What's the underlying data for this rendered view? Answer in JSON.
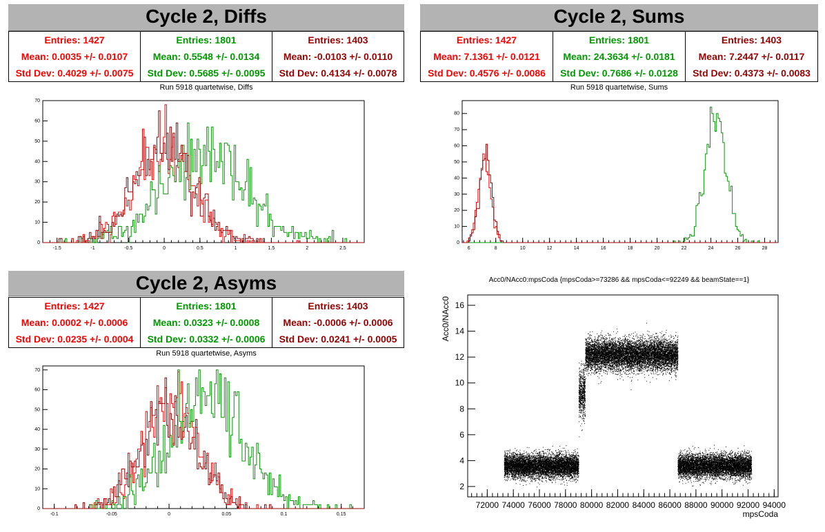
{
  "colors": {
    "red": "#ff0000",
    "green": "#009900",
    "darkred": "#990000"
  },
  "panels": [
    {
      "title": "Cycle 2, Diffs",
      "subtitle": "Run 5918 quartetwise, Diffs",
      "stats": [
        {
          "entries": "Entries: 1427",
          "mean": "Mean: 0.0035 +/- 0.0107",
          "stddev": "Std Dev: 0.4029 +/- 0.0075"
        },
        {
          "entries": "Entries: 1801",
          "mean": "Mean: 0.5548 +/- 0.0134",
          "stddev": "Std Dev: 0.5685 +/- 0.0095"
        },
        {
          "entries": "Entries: 1403",
          "mean": "Mean: -0.0103 +/- 0.0110",
          "stddev": "Std Dev: 0.4134 +/- 0.0078"
        }
      ]
    },
    {
      "title": "Cycle 2, Sums",
      "subtitle": "Run 5918 quartetwise, Sums",
      "stats": [
        {
          "entries": "Entries: 1427",
          "mean": "Mean: 7.1361 +/- 0.0121",
          "stddev": "Std Dev: 0.4576 +/- 0.0086"
        },
        {
          "entries": "Entries: 1801",
          "mean": "Mean: 24.3634 +/- 0.0181",
          "stddev": "Std Dev: 0.7686 +/- 0.0128"
        },
        {
          "entries": "Entries: 1403",
          "mean": "Mean: 7.2447 +/- 0.0117",
          "stddev": "Std Dev: 0.4373 +/- 0.0083"
        }
      ]
    },
    {
      "title": "Cycle 2, Asyms",
      "subtitle": "Run 5918 quartetwise, Asyms",
      "stats": [
        {
          "entries": "Entries: 1427",
          "mean": "Mean: 0.0002 +/- 0.0006",
          "stddev": "Std Dev: 0.0235 +/- 0.0004"
        },
        {
          "entries": "Entries: 1801",
          "mean": "Mean: 0.0323 +/- 0.0008",
          "stddev": "Std Dev: 0.0332 +/- 0.0006"
        },
        {
          "entries": "Entries: 1403",
          "mean": "Mean: -0.0006 +/- 0.0006",
          "stddev": "Std Dev: 0.0241 +/- 0.0005"
        }
      ]
    },
    {
      "title": "Acc0/NAcc0:mpsCoda {mpsCoda>=73286 && mpsCoda<=92249 && beamState==1}"
    }
  ],
  "chart_data": [
    {
      "type": "histogram",
      "name": "diffs",
      "xlim": [
        -1.7,
        2.8
      ],
      "ylim": [
        0,
        70
      ],
      "xticks": [
        -1.5,
        -1,
        -0.5,
        0,
        0.5,
        1,
        1.5,
        2,
        2.5
      ],
      "xtick_labels": [
        "-1.5",
        "-1",
        "-0.5",
        "0",
        "0.5",
        "1",
        "1.5",
        "2",
        "2.5"
      ],
      "yticks": [
        0,
        10,
        20,
        30,
        40,
        50,
        60,
        70
      ],
      "ytick_labels": [
        "0",
        "10",
        "20",
        "30",
        "40",
        "50",
        "60",
        "70"
      ],
      "series": [
        {
          "color": "red",
          "mean": 0.0035,
          "stddev": 0.4029,
          "entries": 1427,
          "peak": 68
        },
        {
          "color": "green",
          "mean": 0.5548,
          "stddev": 0.5685,
          "entries": 1801,
          "peak": 59
        },
        {
          "color": "darkred",
          "mean": -0.0103,
          "stddev": 0.4134,
          "entries": 1403,
          "peak": 65
        }
      ]
    },
    {
      "type": "histogram",
      "name": "sums",
      "xlim": [
        5.5,
        29
      ],
      "ylim": [
        0,
        88
      ],
      "xticks": [
        6,
        8,
        10,
        12,
        14,
        16,
        18,
        20,
        22,
        24,
        26,
        28
      ],
      "xtick_labels": [
        "6",
        "8",
        "10",
        "12",
        "14",
        "16",
        "18",
        "20",
        "22",
        "24",
        "26",
        "28"
      ],
      "yticks": [
        0,
        10,
        20,
        30,
        40,
        50,
        60,
        70,
        80
      ],
      "ytick_labels": [
        "0",
        "10",
        "20",
        "30",
        "40",
        "50",
        "60",
        "70",
        "80"
      ],
      "series": [
        {
          "color": "red",
          "mean": 7.1361,
          "stddev": 0.4576,
          "entries": 1427,
          "peak": 55
        },
        {
          "color": "green",
          "mean": 24.3634,
          "stddev": 0.7686,
          "entries": 1801,
          "peak": 84
        },
        {
          "color": "darkred",
          "mean": 7.2447,
          "stddev": 0.4373,
          "entries": 1403,
          "peak": 61
        }
      ]
    },
    {
      "type": "histogram",
      "name": "asyms",
      "xlim": [
        -0.11,
        0.17
      ],
      "ylim": [
        0,
        72
      ],
      "xticks": [
        -0.1,
        -0.05,
        0,
        0.05,
        0.1,
        0.15
      ],
      "xtick_labels": [
        "-0.1",
        "-0.05",
        "0",
        "0.05",
        "0.1",
        "0.15"
      ],
      "yticks": [
        0,
        10,
        20,
        30,
        40,
        50,
        60,
        70
      ],
      "ytick_labels": [
        "0",
        "10",
        "20",
        "30",
        "40",
        "50",
        "60",
        "70"
      ],
      "series": [
        {
          "color": "red",
          "mean": 0.0002,
          "stddev": 0.0235,
          "entries": 1427,
          "peak": 69
        },
        {
          "color": "green",
          "mean": 0.0323,
          "stddev": 0.0332,
          "entries": 1801,
          "peak": 70
        },
        {
          "color": "darkred",
          "mean": -0.0006,
          "stddev": 0.0241,
          "entries": 1403,
          "peak": 66
        }
      ]
    },
    {
      "type": "scatter",
      "name": "acc0-vs-mpscoda",
      "xlabel": "mpsCoda",
      "ylabel": "Acc0/NAcc0",
      "xlim": [
        70500,
        94300
      ],
      "ylim": [
        1.2,
        16.8
      ],
      "xticks": [
        72000,
        74000,
        76000,
        78000,
        80000,
        82000,
        84000,
        86000,
        88000,
        90000,
        92000,
        94000
      ],
      "xtick_labels": [
        "72000",
        "74000",
        "76000",
        "78000",
        "80000",
        "82000",
        "84000",
        "86000",
        "88000",
        "90000",
        "92000",
        "94000"
      ],
      "yticks": [
        2,
        4,
        6,
        8,
        10,
        12,
        14,
        16
      ],
      "ytick_labels": [
        "2",
        "4",
        "6",
        "8",
        "10",
        "12",
        "14",
        "16"
      ],
      "clusters": [
        {
          "x": [
            73286,
            79000
          ],
          "y_mean": 3.6,
          "y_spread": 0.45
        },
        {
          "x": [
            79000,
            79500
          ],
          "y_mean": 9.2,
          "y_spread": 0.9
        },
        {
          "x": [
            79500,
            86600
          ],
          "y_mean": 12.2,
          "y_spread": 0.6
        },
        {
          "x": [
            86600,
            92249
          ],
          "y_mean": 3.6,
          "y_spread": 0.45
        }
      ]
    }
  ]
}
